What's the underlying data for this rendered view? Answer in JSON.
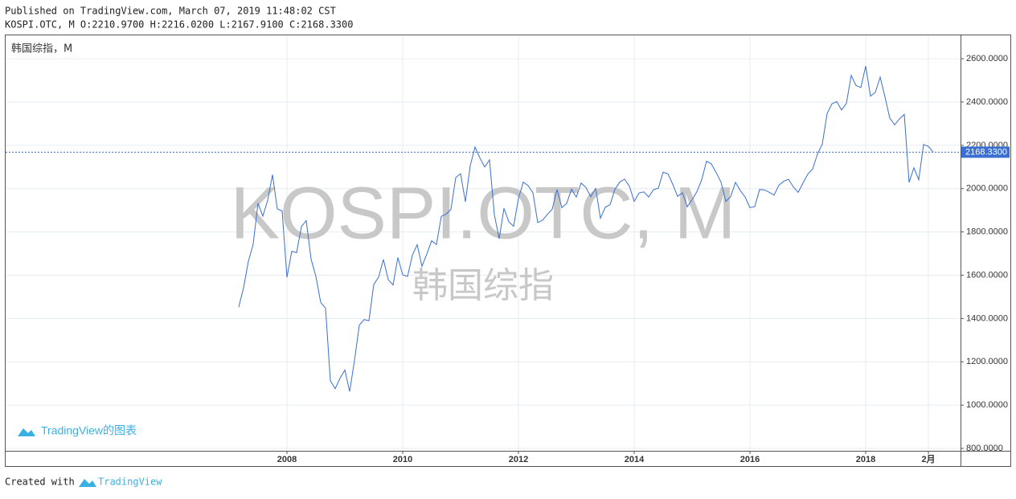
{
  "header": {
    "published": "Published on TradingView.com, March 07, 2019 11:48:02 CST",
    "ohlc": "KOSPI.OTC, M O:2210.9700 H:2216.0200 L:2167.9100 C:2168.3300"
  },
  "footer": {
    "created": "Created with",
    "brand": "TradingView"
  },
  "chart_data": {
    "type": "line",
    "legend_label": "韩国综指，M",
    "watermark": "KOSPI.OTC, M",
    "watermark_sub": "韩国综指",
    "logo_text": "TradingView的图表",
    "color": "#3a6fd1",
    "grid": true,
    "x": [
      "2007-03",
      "2007-04",
      "2007-05",
      "2007-06",
      "2007-07",
      "2007-08",
      "2007-09",
      "2007-10",
      "2007-11",
      "2007-12",
      "2008-01",
      "2008-02",
      "2008-03",
      "2008-04",
      "2008-05",
      "2008-06",
      "2008-07",
      "2008-08",
      "2008-09",
      "2008-10",
      "2008-11",
      "2008-12",
      "2009-01",
      "2009-02",
      "2009-03",
      "2009-04",
      "2009-05",
      "2009-06",
      "2009-07",
      "2009-08",
      "2009-09",
      "2009-10",
      "2009-11",
      "2009-12",
      "2010-01",
      "2010-02",
      "2010-03",
      "2010-04",
      "2010-05",
      "2010-06",
      "2010-07",
      "2010-08",
      "2010-09",
      "2010-10",
      "2010-11",
      "2010-12",
      "2011-01",
      "2011-02",
      "2011-03",
      "2011-04",
      "2011-05",
      "2011-06",
      "2011-07",
      "2011-08",
      "2011-09",
      "2011-10",
      "2011-11",
      "2011-12",
      "2012-01",
      "2012-02",
      "2012-03",
      "2012-04",
      "2012-05",
      "2012-06",
      "2012-07",
      "2012-08",
      "2012-09",
      "2012-10",
      "2012-11",
      "2012-12",
      "2013-01",
      "2013-02",
      "2013-03",
      "2013-04",
      "2013-05",
      "2013-06",
      "2013-07",
      "2013-08",
      "2013-09",
      "2013-10",
      "2013-11",
      "2013-12",
      "2014-01",
      "2014-02",
      "2014-03",
      "2014-04",
      "2014-05",
      "2014-06",
      "2014-07",
      "2014-08",
      "2014-09",
      "2014-10",
      "2014-11",
      "2014-12",
      "2015-01",
      "2015-02",
      "2015-03",
      "2015-04",
      "2015-05",
      "2015-06",
      "2015-07",
      "2015-08",
      "2015-09",
      "2015-10",
      "2015-11",
      "2015-12",
      "2016-01",
      "2016-02",
      "2016-03",
      "2016-04",
      "2016-05",
      "2016-06",
      "2016-07",
      "2016-08",
      "2016-09",
      "2016-10",
      "2016-11",
      "2016-12",
      "2017-01",
      "2017-02",
      "2017-03",
      "2017-04",
      "2017-05",
      "2017-06",
      "2017-07",
      "2017-08",
      "2017-09",
      "2017-10",
      "2017-11",
      "2017-12",
      "2018-01",
      "2018-02",
      "2018-03",
      "2018-04",
      "2018-05",
      "2018-06",
      "2018-07",
      "2018-08",
      "2018-09",
      "2018-10",
      "2018-11",
      "2018-12",
      "2019-01",
      "2019-02",
      "2019-03"
    ],
    "values": [
      1453,
      1542,
      1664,
      1744,
      1933,
      1873,
      1946,
      2064,
      1906,
      1897,
      1590,
      1711,
      1704,
      1825,
      1852,
      1674,
      1594,
      1474,
      1448,
      1113,
      1076,
      1124,
      1162,
      1063,
      1206,
      1369,
      1395,
      1390,
      1557,
      1591,
      1673,
      1580,
      1555,
      1682,
      1602,
      1594,
      1692,
      1741,
      1641,
      1698,
      1759,
      1742,
      1872,
      1882,
      1904,
      2051,
      2069,
      1939,
      2106,
      2192,
      2142,
      2100,
      2133,
      1880,
      1769,
      1909,
      1847,
      1826,
      1955,
      2030,
      2014,
      1981,
      1843,
      1854,
      1881,
      1905,
      1996,
      1912,
      1932,
      1997,
      1961,
      2026,
      2005,
      1963,
      2001,
      1863,
      1914,
      1926,
      1997,
      2030,
      2044,
      2011,
      1941,
      1980,
      1985,
      1961,
      1995,
      2002,
      2076,
      2068,
      2020,
      1964,
      1981,
      1916,
      1949,
      1986,
      2041,
      2127,
      2114,
      2074,
      2030,
      1941,
      1963,
      2029,
      1991,
      1961,
      1912,
      1917,
      1996,
      1994,
      1983,
      1970,
      2016,
      2034,
      2043,
      2008,
      1983,
      2026,
      2067,
      2091,
      2160,
      2205,
      2347,
      2392,
      2402,
      2363,
      2394,
      2523,
      2476,
      2467,
      2566,
      2427,
      2445,
      2515,
      2423,
      2326,
      2295,
      2322,
      2343,
      2029,
      2096,
      2041,
      2204,
      2195,
      2168.33
    ],
    "last_value": {
      "value": 2168.33,
      "label": "2168.3300"
    },
    "ylim": [
      789,
      2708
    ],
    "yticks": [
      {
        "value": 800,
        "label": "800.0000"
      },
      {
        "value": 1000,
        "label": "1000.0000"
      },
      {
        "value": 1200,
        "label": "1200.0000"
      },
      {
        "value": 1400,
        "label": "1400.0000"
      },
      {
        "value": 1600,
        "label": "1600.0000"
      },
      {
        "value": 1800,
        "label": "1800.0000"
      },
      {
        "value": 2000,
        "label": "2000.0000"
      },
      {
        "value": 2200,
        "label": "2200.0000"
      },
      {
        "value": 2400,
        "label": "2400.0000"
      },
      {
        "value": 2600,
        "label": "2600.0000"
      }
    ],
    "xticks": [
      {
        "value": "2008-01",
        "label": "2008"
      },
      {
        "value": "2010-01",
        "label": "2010"
      },
      {
        "value": "2012-01",
        "label": "2012"
      },
      {
        "value": "2014-01",
        "label": "2014"
      },
      {
        "value": "2016-01",
        "label": "2016"
      },
      {
        "value": "2018-01",
        "label": "2018"
      },
      {
        "value": "2019-02",
        "label": "2月"
      }
    ]
  }
}
